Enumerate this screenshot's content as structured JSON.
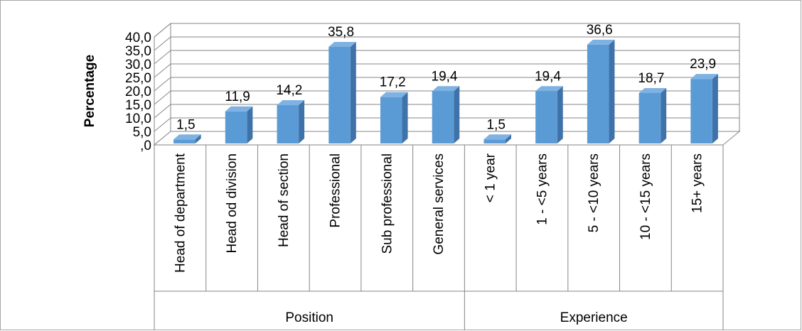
{
  "chart_data": {
    "type": "bar",
    "style": "3d-clustered-column",
    "ylabel": "Percentage",
    "ylim": [
      0,
      40
    ],
    "ytick_step": 5,
    "ytick_labels": [
      ",0",
      "5,0",
      "10,0",
      "15,0",
      "20,0",
      "25,0",
      "30,0",
      "35,0",
      "40,0"
    ],
    "grid": true,
    "legend": "none",
    "bar_color": "#5B9BD5",
    "groups": [
      {
        "label": "Position",
        "categories": [
          "Head of department",
          "Head od division",
          "Head of section",
          "Professional",
          "Sub professional",
          "General services"
        ],
        "values": [
          1.5,
          11.9,
          14.2,
          35.8,
          17.2,
          19.4
        ],
        "data_labels": [
          "1,5",
          "11,9",
          "14,2",
          "35,8",
          "17,2",
          "19,4"
        ]
      },
      {
        "label": "Experience",
        "categories": [
          "< 1 year",
          "1 - <5 years",
          "5 - <10 years",
          "10 - <15 years",
          "15+ years"
        ],
        "values": [
          1.5,
          19.4,
          36.6,
          18.7,
          23.9
        ],
        "data_labels": [
          "1,5",
          "19,4",
          "36,6",
          "18,7",
          "23,9"
        ]
      }
    ]
  }
}
